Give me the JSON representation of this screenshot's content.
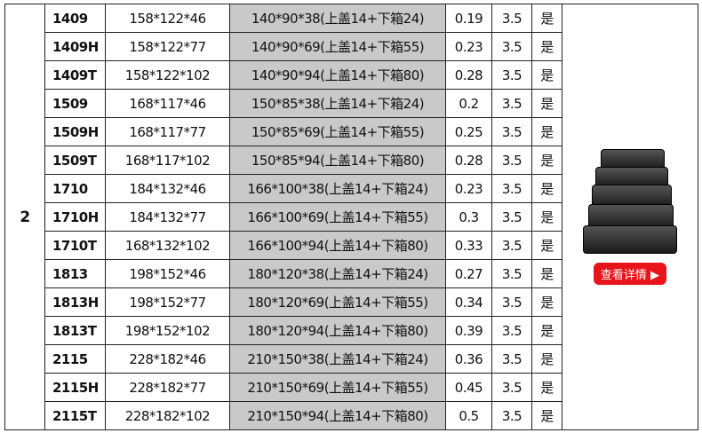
{
  "group": "2",
  "rows": [
    [
      "1409",
      "158*122*46",
      "140*90*38(上盖14+下箱24)",
      "0.19",
      "3.5",
      "是"
    ],
    [
      "1409H",
      "158*122*77",
      "140*90*69(上盖14+下箱55)",
      "0.23",
      "3.5",
      "是"
    ],
    [
      "1409T",
      "158*122*102",
      "140*90*94(上盖14+下箱80)",
      "0.28",
      "3.5",
      "是"
    ],
    [
      "1509",
      "168*117*46",
      "150*85*38(上盖14+下箱24)",
      "0.2",
      "3.5",
      "是"
    ],
    [
      "1509H",
      "168*117*77",
      "150*85*69(上盖14+下箱55)",
      "0.25",
      "3.5",
      "是"
    ],
    [
      "1509T",
      "168*117*102",
      "150*85*94(上盖14+下箱80)",
      "0.28",
      "3.5",
      "是"
    ],
    [
      "1710",
      "184*132*46",
      "166*100*38(上盖14+下箱24)",
      "0.23",
      "3.5",
      "是"
    ],
    [
      "1710H",
      "184*132*77",
      "166*100*69(上盖14+下箱55)",
      "0.3",
      "3.5",
      "是"
    ],
    [
      "1710T",
      "168*132*102",
      "166*100*94(上盖14+下箱80)",
      "0.33",
      "3.5",
      "是"
    ],
    [
      "1813",
      "198*152*46",
      "180*120*38(上盖14+下箱24)",
      "0.27",
      "3.5",
      "是"
    ],
    [
      "1813H",
      "198*152*77",
      "180*120*69(上盖14+下箱55)",
      "0.34",
      "3.5",
      "是"
    ],
    [
      "1813T",
      "198*152*102",
      "180*120*94(上盖14+下箱80)",
      "0.39",
      "3.5",
      "是"
    ],
    [
      "2115",
      "228*182*46",
      "210*150*38(上盖14+下箱24)",
      "0.36",
      "3.5",
      "是"
    ],
    [
      "2115H",
      "228*182*77",
      "210*150*69(上盖14+下箱55)",
      "0.45",
      "3.5",
      "是"
    ],
    [
      "2115T",
      "228*182*102",
      "210*150*94(上盖14+下箱80)",
      "0.5",
      "3.5",
      "是"
    ]
  ],
  "detail_button": "查看详情 ▶",
  "colors": {
    "button": "#e8141b",
    "inner_column": "#c9c9c9"
  }
}
